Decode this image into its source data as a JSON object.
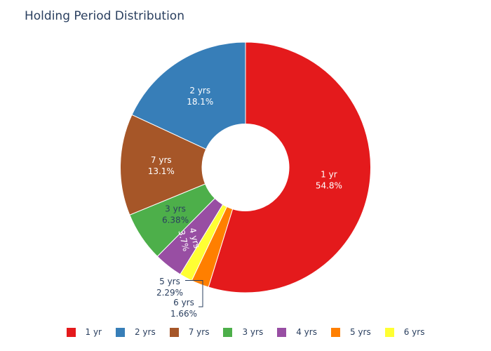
{
  "chart_data": {
    "type": "pie",
    "title": "Holding Period Distribution",
    "hole": true,
    "sort": "descending",
    "direction": "clockwise",
    "legend_position": "bottom",
    "slices": [
      {
        "label": "1 yr",
        "value": 54.8,
        "percent_text": "54.8%",
        "color": "#e41a1c",
        "label_color": "#ffffff"
      },
      {
        "label": "5 yrs",
        "value": 2.29,
        "percent_text": "2.29%",
        "color": "#ff7f00",
        "label_color": "#2a3f5f"
      },
      {
        "label": "6 yrs",
        "value": 1.66,
        "percent_text": "1.66%",
        "color": "#ffff33",
        "label_color": "#2a3f5f"
      },
      {
        "label": "4 yrs",
        "value": 3.7,
        "percent_text": "3.7%",
        "color": "#984ea3",
        "label_color": "#ffffff"
      },
      {
        "label": "3 yrs",
        "value": 6.38,
        "percent_text": "6.38%",
        "color": "#4daf4a",
        "label_color": "#2a3f5f"
      },
      {
        "label": "7 yrs",
        "value": 13.1,
        "percent_text": "13.1%",
        "color": "#a65628",
        "label_color": "#ffffff"
      },
      {
        "label": "2 yrs",
        "value": 18.1,
        "percent_text": "18.1%",
        "color": "#377eb8",
        "label_color": "#ffffff"
      }
    ],
    "legend": [
      "1 yr",
      "2 yrs",
      "7 yrs",
      "3 yrs",
      "4 yrs",
      "5 yrs",
      "6 yrs"
    ]
  }
}
